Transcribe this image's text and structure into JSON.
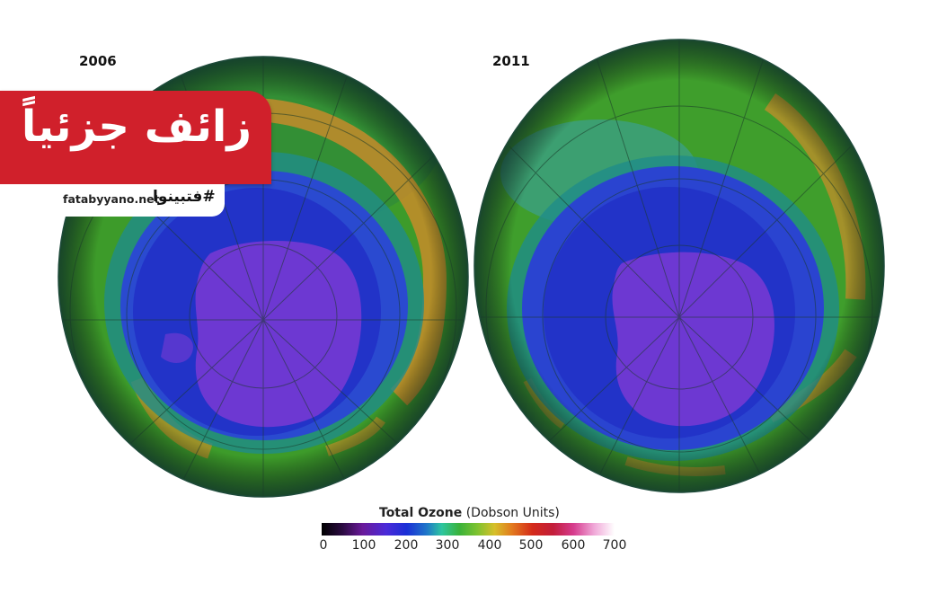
{
  "maps": {
    "left_year": "2006",
    "right_year": "2011"
  },
  "verdict": {
    "label": "زائف جزئياً",
    "color": "#d0202b"
  },
  "branding": {
    "hashtag": "#فتبينوا",
    "site": "fatabyyano.net"
  },
  "legend": {
    "title_bold": "Total Ozone",
    "title_unit": " (Dobson Units)",
    "ticks": [
      "0",
      "100",
      "200",
      "300",
      "400",
      "500",
      "600",
      "700"
    ]
  }
}
